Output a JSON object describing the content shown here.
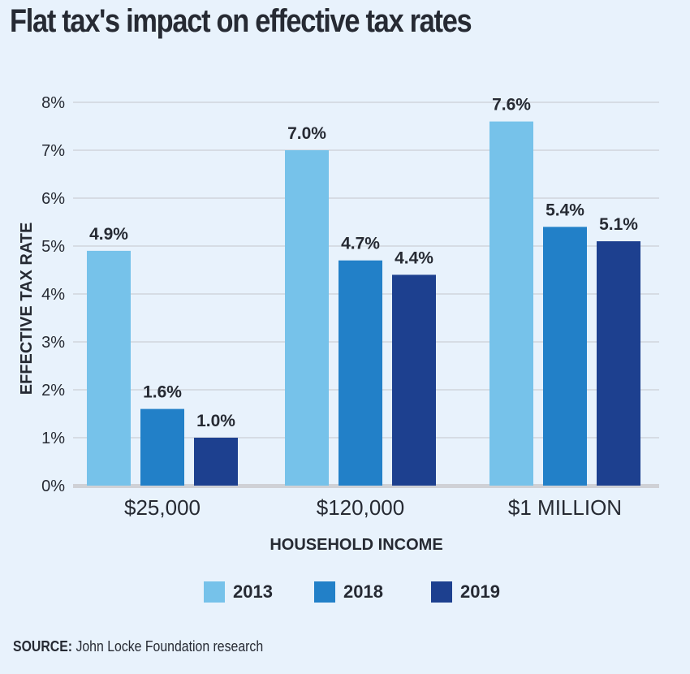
{
  "chart_data": {
    "type": "bar",
    "title": "Flat tax's impact on effective tax rates",
    "xlabel": "HOUSEHOLD INCOME",
    "ylabel": "EFFECTIVE TAX RATE",
    "categories": [
      "$25,000",
      "$120,000",
      "$1 MILLION"
    ],
    "series": [
      {
        "name": "2013",
        "color": "#76c2ea",
        "values": [
          4.9,
          7.0,
          7.6
        ],
        "labels": [
          "4.9%",
          "7.0%",
          "7.6%"
        ]
      },
      {
        "name": "2018",
        "color": "#2280c8",
        "values": [
          1.6,
          4.7,
          5.4
        ],
        "labels": [
          "1.6%",
          "4.7%",
          "5.4%"
        ]
      },
      {
        "name": "2019",
        "color": "#1d408f",
        "values": [
          1.0,
          4.4,
          5.1
        ],
        "labels": [
          "1.0%",
          "4.4%",
          "5.1%"
        ]
      }
    ],
    "ylim": [
      0,
      8
    ],
    "yticks": [
      0,
      1,
      2,
      3,
      4,
      5,
      6,
      7,
      8
    ],
    "ytick_labels": [
      "0%",
      "1%",
      "2%",
      "3%",
      "4%",
      "5%",
      "6%",
      "7%",
      "8%"
    ],
    "grid": true,
    "legend_position": "bottom-center"
  },
  "source": {
    "label": "SOURCE:",
    "text": " John Locke Foundation research"
  }
}
